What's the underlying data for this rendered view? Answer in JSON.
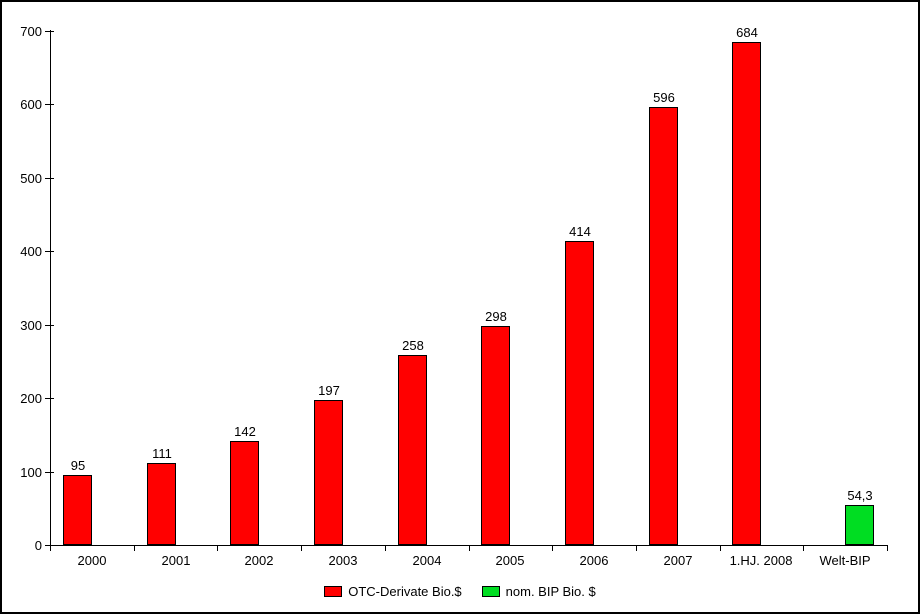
{
  "frame": {
    "background": "#ffffff",
    "border_color": "#000000",
    "axis_color": "#000000",
    "text_color": "#000000"
  },
  "chart_data": {
    "type": "bar",
    "title": "",
    "xlabel": "",
    "ylabel": "",
    "categories": [
      "2000",
      "2001",
      "2002",
      "2003",
      "2004",
      "2005",
      "2006",
      "2007",
      "1.HJ. 2008",
      "Welt-BIP"
    ],
    "series": [
      {
        "name": "OTC-Derivate Bio.$",
        "color": "#ff0000",
        "values": [
          95,
          111,
          142,
          197,
          258,
          298,
          414,
          596,
          684,
          null
        ],
        "labels": [
          "95",
          "111",
          "142",
          "197",
          "258",
          "298",
          "414",
          "596",
          "684",
          null
        ]
      },
      {
        "name": "nom. BIP Bio. $",
        "color": "#00dd22",
        "values": [
          null,
          null,
          null,
          null,
          null,
          null,
          null,
          null,
          null,
          54.3
        ],
        "labels": [
          null,
          null,
          null,
          null,
          null,
          null,
          null,
          null,
          null,
          "54,3"
        ]
      }
    ],
    "ylim": [
      0,
      700
    ],
    "ytick_step": 100,
    "ytick_labels": [
      "0",
      "100",
      "200",
      "300",
      "400",
      "500",
      "600",
      "700"
    ],
    "grid": false,
    "legend_position": "bottom"
  }
}
